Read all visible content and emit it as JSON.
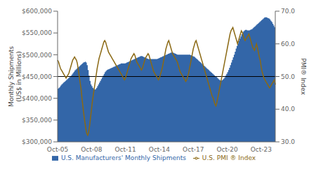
{
  "chart_data": {
    "type": "combo",
    "categories": [
      "Oct-05",
      null,
      null,
      null,
      null,
      null,
      null,
      null,
      null,
      null,
      null,
      null,
      null,
      null,
      null,
      null,
      null,
      null,
      null,
      null,
      null,
      null,
      null,
      null,
      null,
      null,
      null,
      null,
      null,
      null,
      null,
      null,
      null,
      null,
      null,
      null,
      "Oct-08",
      null,
      null,
      null,
      null,
      null,
      null,
      null,
      null,
      null,
      null,
      null,
      null,
      null,
      null,
      null,
      null,
      null,
      null,
      null,
      null,
      null,
      null,
      null,
      null,
      null,
      null,
      null,
      null,
      null,
      null,
      null,
      null,
      null,
      null,
      null,
      "Oct-11",
      null,
      null,
      null,
      null,
      null,
      null,
      null,
      null,
      null,
      null,
      null,
      null,
      null,
      null,
      null,
      null,
      null,
      null,
      null,
      null,
      null,
      null,
      null,
      null,
      null,
      null,
      null,
      null,
      null,
      null,
      null,
      null,
      null,
      null,
      null,
      "Oct-14",
      null,
      null,
      null,
      null,
      null,
      null,
      null,
      null,
      null,
      null,
      null,
      null,
      null,
      null,
      null,
      null,
      null,
      null,
      null,
      null,
      null,
      null,
      null,
      null,
      null,
      null,
      null,
      null,
      null,
      null,
      null,
      null,
      null,
      null,
      null,
      "Oct-17",
      null,
      null,
      null,
      null,
      null,
      null,
      null,
      null,
      null,
      null,
      null,
      null,
      null,
      null,
      null,
      null,
      null,
      null,
      null,
      null,
      null,
      null,
      null,
      null,
      null,
      null,
      null,
      null,
      null,
      null,
      null,
      null,
      null,
      null,
      null,
      "Oct-20",
      null,
      null,
      null,
      null,
      null,
      null,
      null,
      null,
      null,
      null,
      null,
      null,
      null,
      null,
      null,
      null,
      null,
      null,
      null,
      null,
      null,
      null,
      null,
      null,
      null,
      null,
      null,
      null,
      null,
      null,
      null,
      null,
      null,
      null,
      null,
      "Oct-23",
      null,
      null,
      null,
      null,
      null,
      null,
      null,
      null,
      null,
      null,
      null,
      null,
      null,
      null,
      null
    ],
    "series": [
      {
        "name": "U.S. Manufacturers' Monthly Shipments",
        "type": "area",
        "line_style": "step",
        "color": "#3366a8",
        "values": [
          422000,
          424000,
          426000,
          429000,
          432000,
          434000,
          436000,
          438000,
          440000,
          442000,
          444000,
          446000,
          448000,
          450000,
          452000,
          455000,
          458000,
          461000,
          464000,
          466000,
          468000,
          470000,
          472000,
          474000,
          476000,
          478000,
          480000,
          482000,
          483000,
          484000,
          482000,
          476000,
          465000,
          452000,
          440000,
          432000,
          428000,
          424000,
          421000,
          420000,
          421000,
          424000,
          428000,
          432000,
          436000,
          440000,
          444000,
          448000,
          452000,
          456000,
          460000,
          463000,
          465000,
          466000,
          467000,
          468000,
          469000,
          470000,
          471000,
          472000,
          473000,
          474000,
          475000,
          476000,
          477000,
          478000,
          479000,
          480000,
          480000,
          480000,
          480000,
          480000,
          481000,
          482000,
          483000,
          484000,
          485000,
          486000,
          487000,
          488000,
          489000,
          490000,
          491000,
          492000,
          493000,
          494000,
          495000,
          496000,
          497000,
          497000,
          496000,
          495000,
          494000,
          493000,
          492000,
          491000,
          490000,
          490000,
          490000,
          490000,
          490000,
          490000,
          490000,
          490000,
          490000,
          490000,
          491000,
          492000,
          493000,
          494000,
          495000,
          496000,
          497000,
          498000,
          499000,
          500000,
          501000,
          502000,
          503000,
          504000,
          505000,
          505000,
          505000,
          504000,
          503000,
          502000,
          501000,
          500000,
          500000,
          500000,
          500000,
          500000,
          500000,
          500000,
          500000,
          500000,
          500000,
          500000,
          500000,
          500000,
          500000,
          499000,
          498000,
          497000,
          496000,
          495000,
          493000,
          491000,
          489000,
          487000,
          485000,
          483000,
          481000,
          479000,
          477000,
          475000,
          473000,
          471000,
          469000,
          467000,
          465000,
          463000,
          461000,
          459000,
          457000,
          455000,
          453000,
          451000,
          449000,
          447000,
          445000,
          443000,
          441000,
          440000,
          441000,
          443000,
          445000,
          448000,
          452000,
          456000,
          460000,
          465000,
          470000,
          476000,
          482000,
          488000,
          494000,
          500000,
          507000,
          514000,
          520000,
          526000,
          532000,
          537000,
          542000,
          547000,
          551000,
          554000,
          556000,
          557000,
          557000,
          556000,
          556000,
          556000,
          557000,
          558000,
          559000,
          561000,
          563000,
          565000,
          567000,
          569000,
          571000,
          573000,
          575000,
          577000,
          579000,
          581000,
          583000,
          585000,
          586000,
          586000,
          585000,
          584000,
          583000,
          581000,
          578000,
          575000,
          571000,
          567000,
          563000,
          560000
        ]
      },
      {
        "name": "U.S. PMI ® Index",
        "type": "line",
        "axis": "y2",
        "color": "#8b6914",
        "values": [
          55.0,
          54.5,
          53.5,
          52.5,
          52.0,
          51.5,
          51.0,
          50.5,
          50.0,
          49.5,
          50.0,
          50.5,
          51.0,
          52.0,
          53.0,
          54.0,
          55.0,
          55.5,
          56.0,
          55.5,
          55.0,
          54.0,
          52.0,
          50.0,
          48.0,
          46.0,
          43.0,
          40.5,
          38.0,
          36.0,
          34.0,
          32.5,
          32.0,
          33.0,
          35.0,
          37.5,
          40.0,
          42.5,
          44.5,
          46.5,
          48.5,
          50.5,
          52.5,
          54.0,
          55.5,
          56.5,
          57.5,
          58.5,
          59.5,
          60.5,
          61.0,
          60.5,
          59.5,
          58.5,
          57.5,
          57.0,
          56.5,
          56.0,
          55.5,
          55.0,
          54.5,
          54.0,
          53.5,
          53.0,
          52.5,
          52.0,
          51.5,
          51.0,
          50.5,
          50.0,
          49.5,
          49.0,
          49.5,
          50.5,
          51.5,
          52.5,
          53.5,
          54.5,
          55.5,
          56.0,
          56.5,
          57.0,
          56.5,
          55.5,
          54.5,
          54.0,
          53.5,
          53.0,
          52.5,
          52.0,
          52.5,
          53.5,
          54.5,
          55.5,
          56.0,
          56.5,
          57.0,
          56.5,
          55.5,
          54.5,
          53.5,
          52.5,
          51.5,
          51.0,
          50.5,
          50.0,
          49.5,
          49.0,
          49.5,
          50.5,
          51.5,
          52.5,
          54.0,
          55.5,
          57.0,
          58.5,
          59.5,
          60.5,
          61.0,
          60.0,
          59.0,
          58.0,
          57.0,
          56.5,
          56.0,
          55.5,
          55.0,
          54.5,
          53.5,
          52.5,
          51.5,
          51.0,
          50.5,
          50.0,
          49.5,
          49.0,
          48.5,
          49.0,
          50.0,
          51.0,
          52.5,
          54.0,
          55.5,
          57.0,
          58.5,
          59.5,
          60.5,
          61.0,
          60.0,
          59.0,
          58.0,
          57.0,
          56.0,
          55.0,
          54.0,
          53.0,
          52.0,
          51.0,
          50.0,
          49.0,
          48.0,
          47.0,
          46.0,
          45.0,
          44.0,
          43.5,
          42.5,
          41.5,
          41.0,
          42.0,
          43.5,
          45.0,
          46.5,
          48.0,
          49.5,
          51.0,
          52.5,
          54.0,
          55.5,
          57.0,
          58.5,
          60.0,
          61.5,
          63.0,
          64.0,
          64.5,
          65.0,
          64.0,
          63.0,
          62.0,
          61.0,
          60.0,
          61.0,
          62.0,
          63.0,
          64.0,
          63.5,
          62.5,
          61.5,
          61.0,
          61.5,
          62.0,
          62.5,
          63.0,
          62.0,
          61.0,
          60.0,
          59.0,
          58.5,
          58.0,
          59.0,
          60.0,
          59.0,
          57.5,
          56.0,
          55.0,
          53.0,
          51.5,
          50.5,
          49.5,
          49.0,
          48.5,
          48.0,
          47.5,
          47.0,
          46.5,
          47.0,
          47.5,
          48.0,
          48.5,
          49.0,
          47.5
        ]
      }
    ],
    "ylabel": "Monthly Shipments\n(US$ in Millions)",
    "y2label": "PMI® Index",
    "ylim": [
      300000,
      600000
    ],
    "yticks": [
      {
        "value": 300000,
        "label": "$300,000"
      },
      {
        "value": 350000,
        "label": "$350,000"
      },
      {
        "value": 400000,
        "label": "$400,000"
      },
      {
        "value": 450000,
        "label": "$450,000"
      },
      {
        "value": 500000,
        "label": "$500,000"
      },
      {
        "value": 550000,
        "label": "$550,000"
      },
      {
        "value": 600000,
        "label": "$600,000"
      }
    ],
    "y2lim": [
      30.0,
      70.0
    ],
    "y2ticks": [
      {
        "value": 30.0,
        "label": "30.0"
      },
      {
        "value": 40.0,
        "label": "40.0"
      },
      {
        "value": 50.0,
        "label": "50.0"
      },
      {
        "value": 60.0,
        "label": "60.0"
      },
      {
        "value": 70.0,
        "label": "70.0"
      }
    ],
    "hlines": [
      {
        "value": 450000,
        "color": "#000000"
      }
    ],
    "legend": "bottom",
    "grid": false
  }
}
